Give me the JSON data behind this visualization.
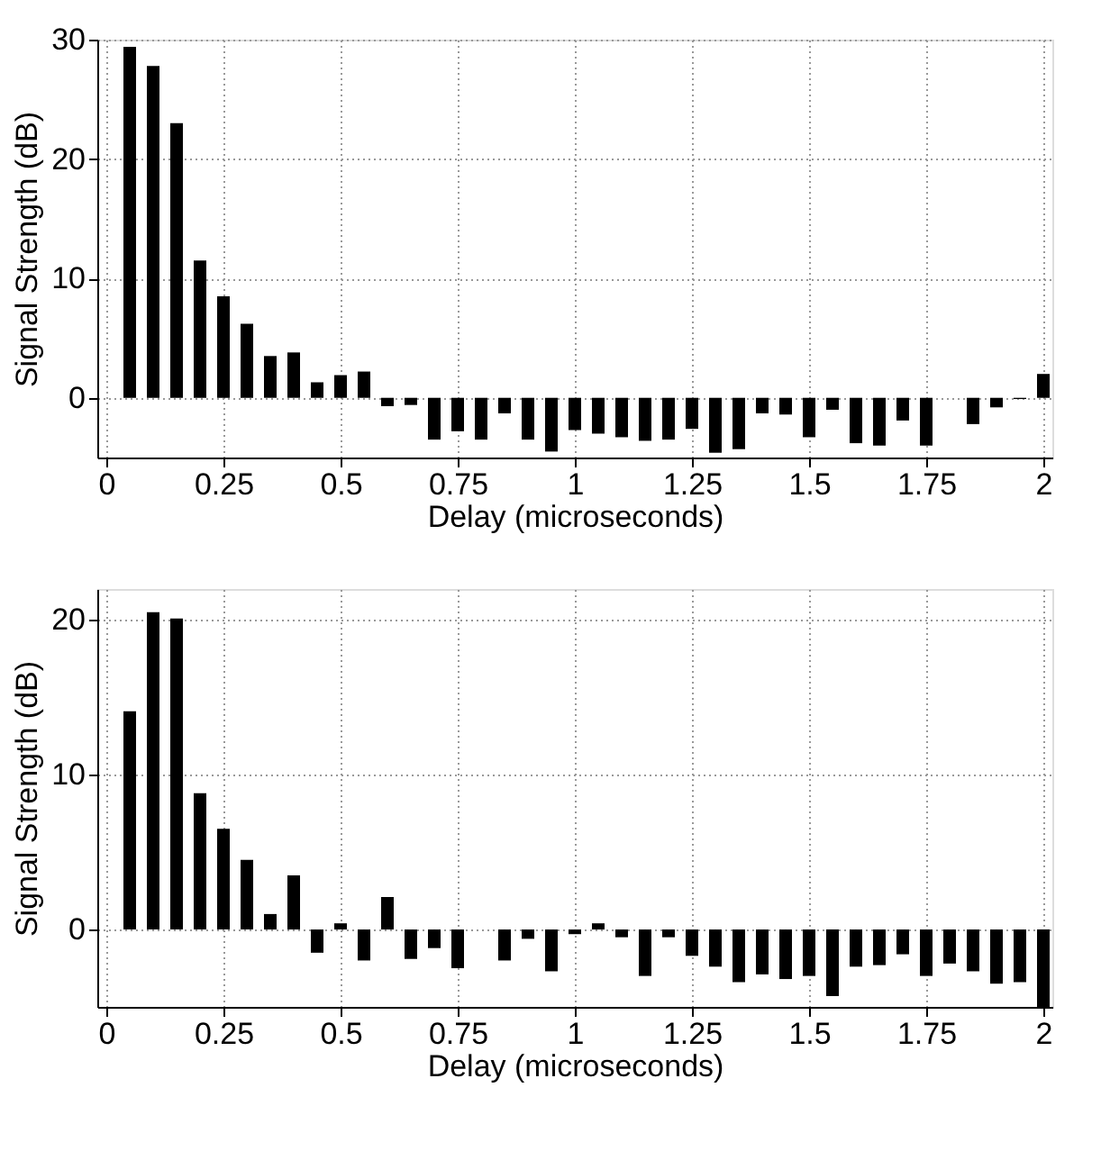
{
  "chart_data": [
    {
      "type": "bar",
      "xlabel": "Delay (microseconds)",
      "ylabel": "Signal Strength (dB)",
      "color": "#000000",
      "grid": true,
      "x": [
        0.05,
        0.1,
        0.15,
        0.2,
        0.25,
        0.3,
        0.35,
        0.4,
        0.45,
        0.5,
        0.55,
        0.6,
        0.65,
        0.7,
        0.75,
        0.8,
        0.85,
        0.9,
        0.95,
        1.0,
        1.05,
        1.1,
        1.15,
        1.2,
        1.25,
        1.3,
        1.35,
        1.4,
        1.45,
        1.5,
        1.55,
        1.6,
        1.65,
        1.7,
        1.75,
        1.8,
        1.85,
        1.9,
        1.95,
        2.0
      ],
      "values": [
        29.4,
        27.8,
        23.0,
        11.5,
        8.5,
        6.2,
        3.5,
        3.8,
        1.3,
        1.9,
        2.2,
        -0.7,
        -0.6,
        -3.5,
        -2.8,
        -3.5,
        -1.3,
        -3.5,
        -4.5,
        -2.7,
        -3.0,
        -3.3,
        -3.6,
        -3.5,
        -2.6,
        -4.6,
        -4.3,
        -1.3,
        -1.4,
        -3.3,
        -1.0,
        -3.8,
        -4.0,
        -1.9,
        -4.0,
        0,
        -2.2,
        -0.8,
        -0.1,
        2.0
      ],
      "xlim": [
        0,
        2
      ],
      "xticks": [
        0,
        0.25,
        0.5,
        0.75,
        1,
        1.25,
        1.5,
        1.75,
        2
      ],
      "ylim": [
        -5,
        30
      ],
      "yticks": [
        0,
        10,
        20,
        30
      ]
    },
    {
      "type": "bar",
      "xlabel": "Delay (microseconds)",
      "ylabel": "Signal Strength (dB)",
      "color": "#000000",
      "grid": true,
      "x": [
        0.05,
        0.1,
        0.15,
        0.2,
        0.25,
        0.3,
        0.35,
        0.4,
        0.45,
        0.5,
        0.55,
        0.6,
        0.65,
        0.7,
        0.75,
        0.8,
        0.85,
        0.9,
        0.95,
        1.0,
        1.05,
        1.1,
        1.15,
        1.2,
        1.25,
        1.3,
        1.35,
        1.4,
        1.45,
        1.5,
        1.55,
        1.6,
        1.65,
        1.7,
        1.75,
        1.8,
        1.85,
        1.9,
        1.95,
        2.0
      ],
      "values": [
        14.1,
        20.5,
        20.1,
        8.8,
        6.5,
        4.5,
        1.0,
        3.5,
        -1.5,
        0.4,
        -2.0,
        2.1,
        -1.9,
        -1.2,
        -2.5,
        0,
        -2.0,
        -0.6,
        -2.7,
        -0.3,
        0.4,
        -0.5,
        -3.0,
        -0.5,
        -1.7,
        -2.4,
        -3.4,
        -2.9,
        -3.2,
        -3.0,
        -4.3,
        -2.4,
        -2.3,
        -1.6,
        -3.0,
        -2.2,
        -2.7,
        -3.5,
        -3.4,
        -5.0
      ],
      "xlim": [
        0,
        2
      ],
      "xticks": [
        0,
        0.25,
        0.5,
        0.75,
        1,
        1.25,
        1.5,
        1.75,
        2
      ],
      "ylim": [
        -5,
        22
      ],
      "yticks": [
        0,
        10,
        20
      ]
    }
  ]
}
